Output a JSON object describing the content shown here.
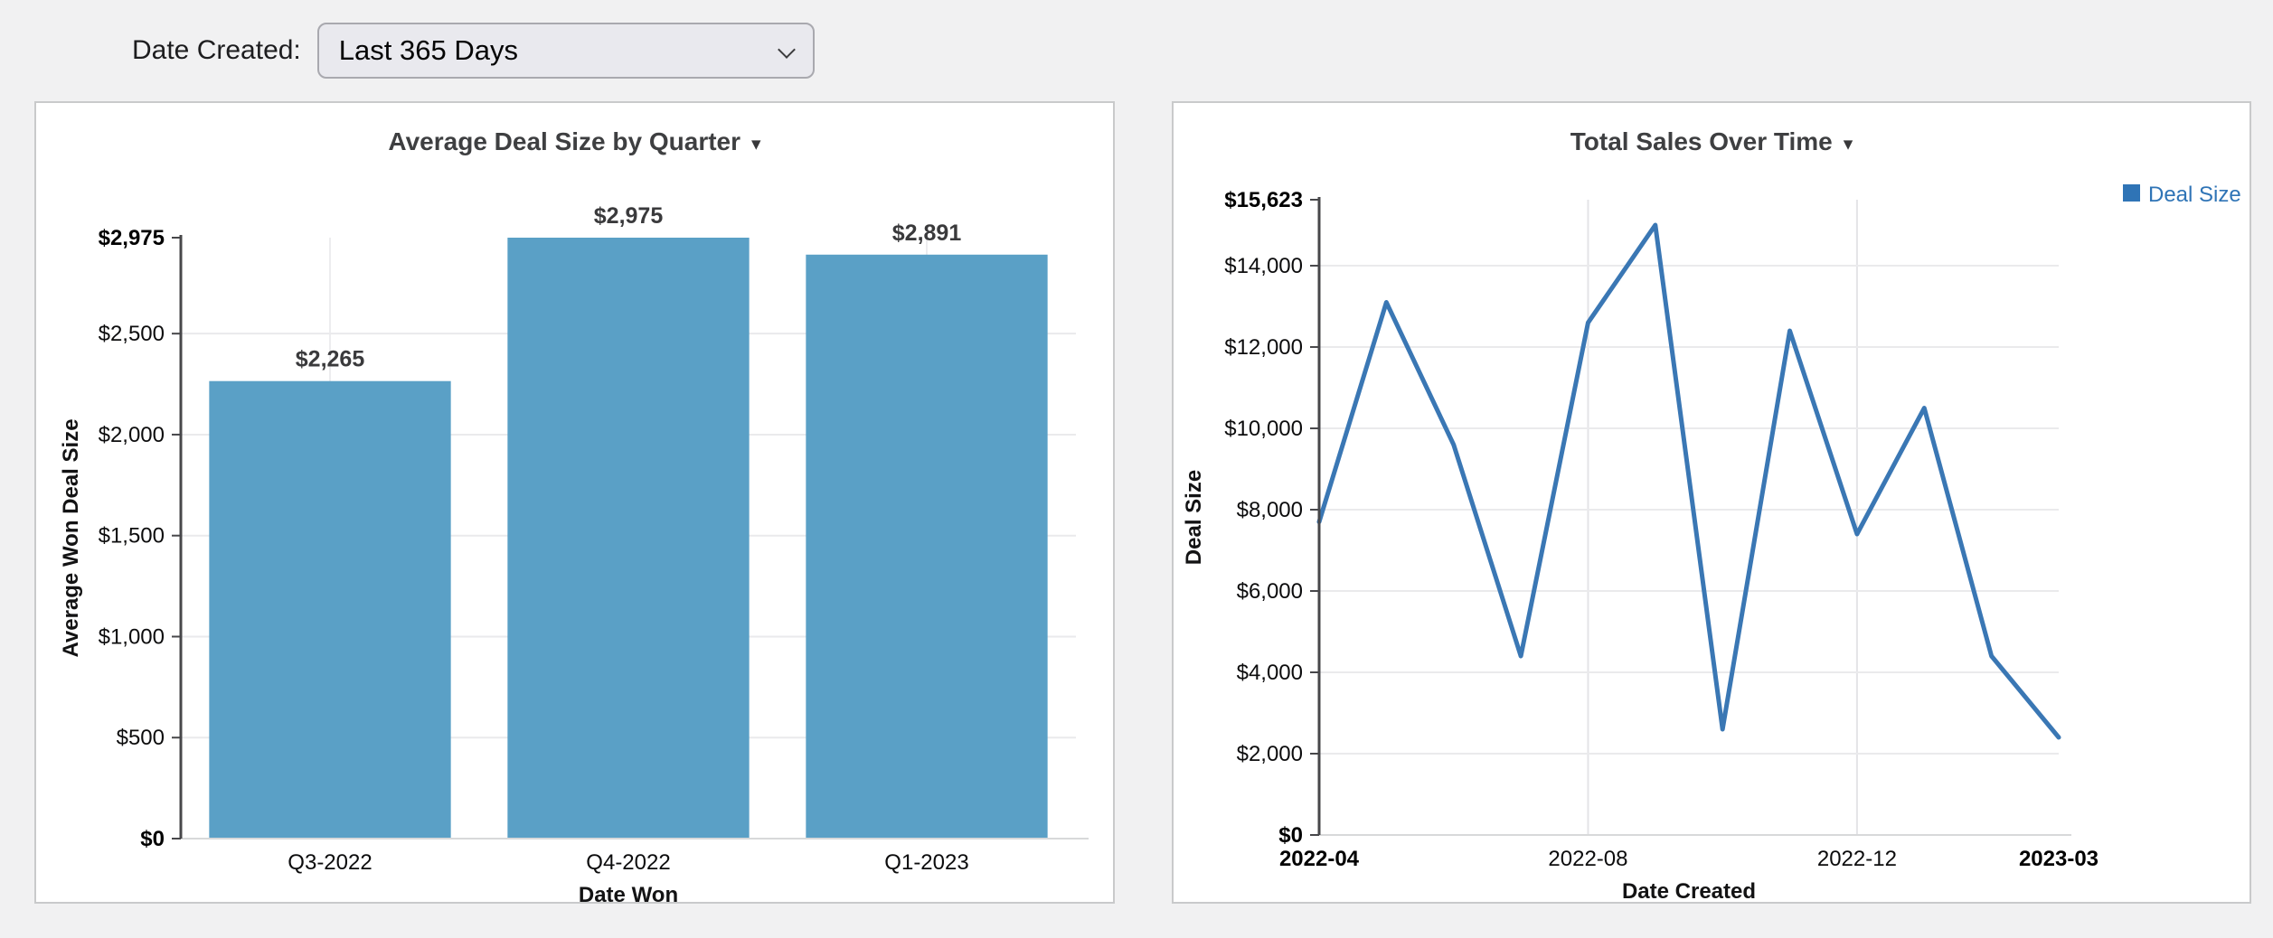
{
  "filter_bar": {
    "label": "Date Created:",
    "dropdown": {
      "value": "Last 365 Days"
    }
  },
  "chart_data": [
    {
      "type": "bar",
      "title": "Average Deal Size by Quarter",
      "categories": [
        "Q3-2022",
        "Q4-2022",
        "Q1-2023"
      ],
      "values": [
        2265,
        2975,
        2891
      ],
      "value_labels": [
        "$2,265",
        "$2,975",
        "$2,891"
      ],
      "xlabel": "Date Won",
      "ylabel": "Average Won Deal Size",
      "ylim": [
        0,
        2975
      ],
      "yticks": [
        {
          "value": 0,
          "label": "$0",
          "bold": true
        },
        {
          "value": 500,
          "label": "$500"
        },
        {
          "value": 1000,
          "label": "$1,000"
        },
        {
          "value": 1500,
          "label": "$1,500"
        },
        {
          "value": 2000,
          "label": "$2,000"
        },
        {
          "value": 2500,
          "label": "$2,500"
        },
        {
          "value": 2975,
          "label": "$2,975",
          "bold": true
        }
      ],
      "bar_color": "#5aa0c6",
      "grid": true
    },
    {
      "type": "line",
      "title": "Total Sales Over Time",
      "x": [
        "2022-04",
        "2022-05",
        "2022-06",
        "2022-07",
        "2022-08",
        "2022-09",
        "2022-10",
        "2022-11",
        "2022-12",
        "2023-01",
        "2023-02",
        "2023-03"
      ],
      "values": [
        7700,
        13100,
        9600,
        4400,
        12600,
        15000,
        2600,
        12400,
        7400,
        10500,
        4400,
        2400
      ],
      "xlabel": "Date Created",
      "ylabel": "Deal Size",
      "ylim": [
        0,
        15623
      ],
      "yticks": [
        {
          "value": 0,
          "label": "$0",
          "bold": true
        },
        {
          "value": 2000,
          "label": "$2,000"
        },
        {
          "value": 4000,
          "label": "$4,000"
        },
        {
          "value": 6000,
          "label": "$6,000"
        },
        {
          "value": 8000,
          "label": "$8,000"
        },
        {
          "value": 10000,
          "label": "$10,000"
        },
        {
          "value": 12000,
          "label": "$12,000"
        },
        {
          "value": 14000,
          "label": "$14,000"
        },
        {
          "value": 15623,
          "label": "$15,623",
          "bold": true
        }
      ],
      "xticks": [
        {
          "index": 0,
          "label": "2022-04",
          "bold": true
        },
        {
          "index": 4,
          "label": "2022-08"
        },
        {
          "index": 8,
          "label": "2022-12"
        },
        {
          "index": 11,
          "label": "2023-03",
          "bold": true
        }
      ],
      "legend": {
        "label": "Deal Size",
        "color": "#2f74b6",
        "position": "top-right"
      },
      "line_color": "#3a77b4",
      "grid": true
    }
  ]
}
